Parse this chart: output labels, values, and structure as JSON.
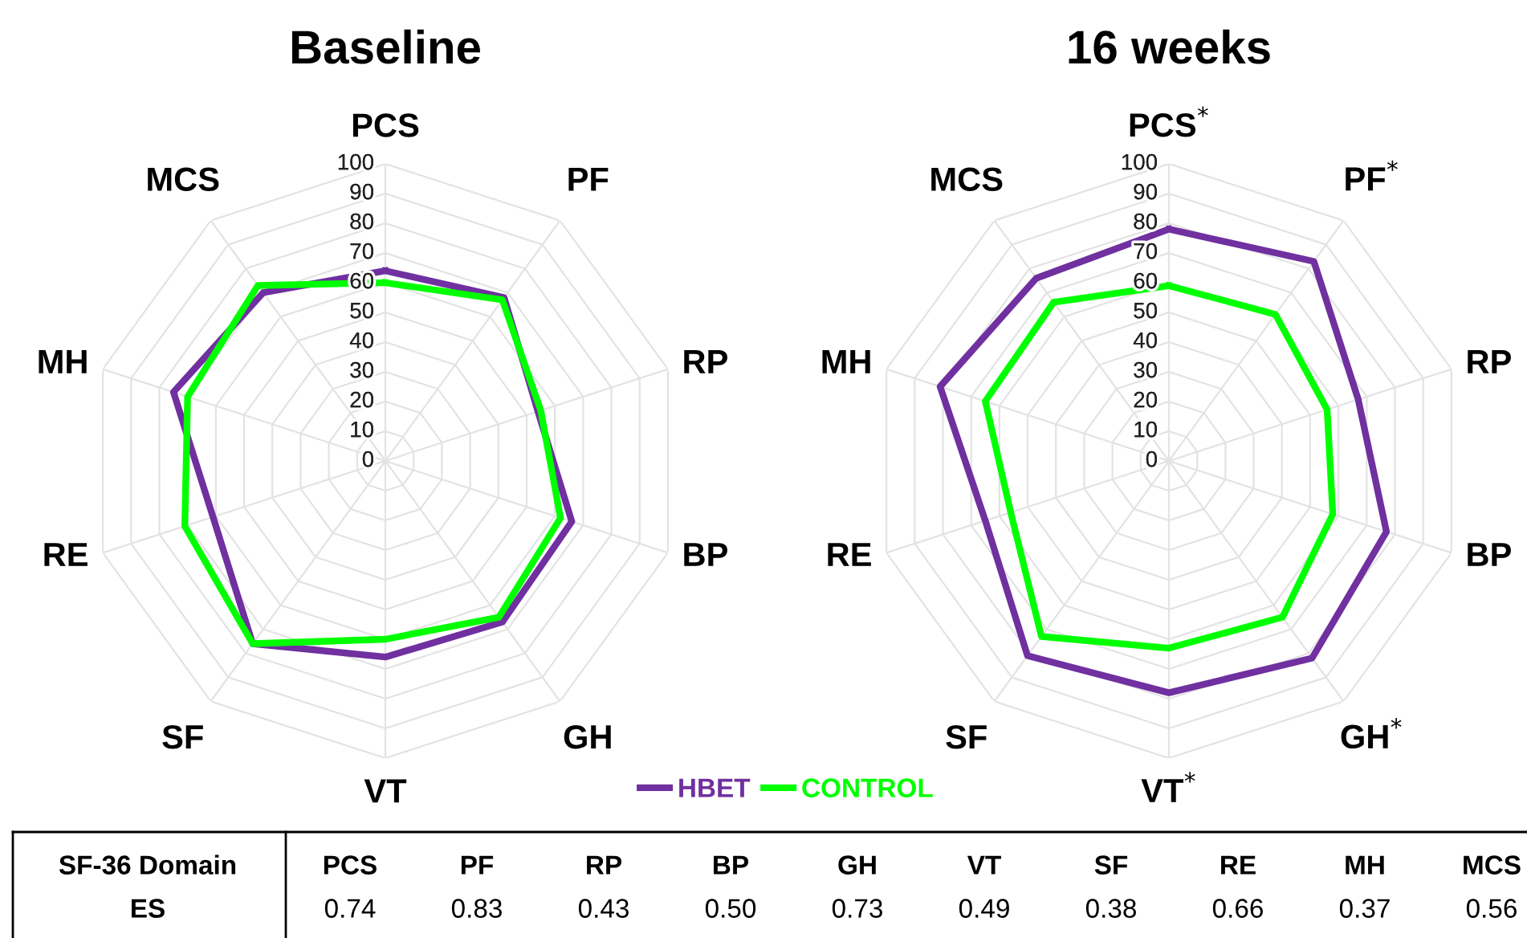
{
  "chart_data": [
    {
      "type": "radar",
      "title": "Baseline",
      "categories": [
        "PCS",
        "PF",
        "RP",
        "BP",
        "GH",
        "VT",
        "SF",
        "RE",
        "MH",
        "MCS"
      ],
      "ylim": [
        0,
        100
      ],
      "yticks": [
        0,
        10,
        20,
        30,
        40,
        50,
        60,
        70,
        80,
        90,
        100
      ],
      "series": [
        {
          "color": "#7030a0",
          "values": [
            64,
            68,
            54,
            66,
            67,
            66,
            76,
            61,
            75,
            70
          ]
        },
        {
          "color": "#00ff00",
          "values": [
            60,
            67,
            55,
            62,
            65,
            60,
            76,
            71,
            70,
            73
          ]
        }
      ]
    },
    {
      "type": "radar",
      "title": "16 weeks",
      "categories": [
        "PCS$^{*}$",
        "PF$^{*}$",
        "RP",
        "BP",
        "GH$^{*}$",
        "VT$^{*}$",
        "SF",
        "RE",
        "MH",
        "MCS"
      ],
      "ylim": [
        0,
        100
      ],
      "yticks": [
        0,
        10,
        20,
        30,
        40,
        50,
        60,
        70,
        80,
        90,
        100
      ],
      "legend": "bottom left",
      "series": [
        {
          "name": "HBET",
          "color": "#7030a0",
          "values": [
            78,
            83,
            67,
            77,
            82,
            78,
            81,
            65,
            81,
            76
          ]
        },
        {
          "name": "CONTROL",
          "color": "#00ff00",
          "values": [
            59,
            61,
            56,
            58,
            65,
            63,
            73,
            56,
            65,
            66
          ]
        }
      ]
    },
    {
      "type": "other",
      "annotations": [
        "SF-36 Domain",
        "ES"
      ],
      "categories": [
        "PCS",
        "PF",
        "RP",
        "BP",
        "GH",
        "VT",
        "SF",
        "RE",
        "MH",
        "MCS"
      ],
      "values": [
        0.74,
        0.83,
        0.43,
        0.5,
        0.73,
        0.49,
        0.38,
        0.66,
        0.37,
        0.56
      ],
      "value_labels": [
        "0.74",
        "0.83",
        "0.43",
        "0.50",
        "0.73",
        "0.49",
        "0.38",
        "0.66",
        "0.37",
        "0.56"
      ]
    }
  ]
}
